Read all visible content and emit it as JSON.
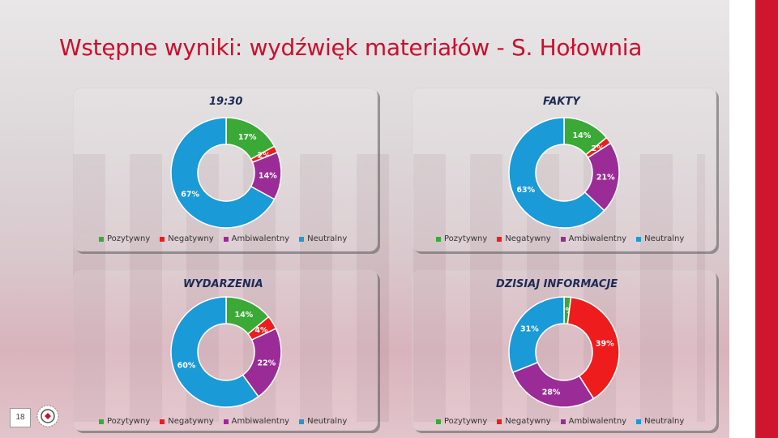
{
  "title": "Wstępne wyniki: wydźwięk materiałów - S. Hołownia",
  "page_number": "18",
  "colors": {
    "Pozytywny": "#3aa935",
    "Negatywny": "#ee1c1c",
    "Ambiwalentny": "#9b2c97",
    "Neutralny": "#1a9ad6"
  },
  "chart_data": [
    {
      "type": "pie",
      "title": "19:30",
      "categories": [
        "Pozytywny",
        "Negatywny",
        "Ambiwalentny",
        "Neutralny"
      ],
      "values": [
        17,
        2,
        14,
        67
      ],
      "labels": [
        "17%",
        "2%",
        "14%",
        "67%"
      ],
      "legend": [
        "Pozytywny",
        "Negatywny",
        "Ambiwalentny",
        "Neutralny"
      ]
    },
    {
      "type": "pie",
      "title": "FAKTY",
      "categories": [
        "Pozytywny",
        "Negatywny",
        "Ambiwalentny",
        "Neutralny"
      ],
      "values": [
        14,
        2,
        21,
        63
      ],
      "labels": [
        "14%",
        "2%",
        "21%",
        "63%"
      ],
      "legend": [
        "Pozytywny",
        "Negatywny",
        "Ambiwalentny",
        "Neutralny"
      ]
    },
    {
      "type": "pie",
      "title": "WYDARZENIA",
      "categories": [
        "Pozytywny",
        "Negatywny",
        "Ambiwalentny",
        "Neutralny"
      ],
      "values": [
        14,
        4,
        22,
        60
      ],
      "labels": [
        "14%",
        "4%",
        "22%",
        "60%"
      ],
      "legend": [
        "Pozytywny",
        "Negatywny",
        "Ambiwalentny",
        "Neutralny"
      ]
    },
    {
      "type": "pie",
      "title": "DZISIAJ INFORMACJE",
      "categories": [
        "Pozytywny",
        "Negatywny",
        "Ambiwalentny",
        "Neutralny"
      ],
      "values": [
        2,
        39,
        28,
        31
      ],
      "labels": [
        "2%",
        "39%",
        "28%",
        "31%"
      ],
      "legend": [
        "Pozytywny",
        "Negatywny",
        "Ambiwalentny",
        "Neutralny"
      ]
    }
  ]
}
